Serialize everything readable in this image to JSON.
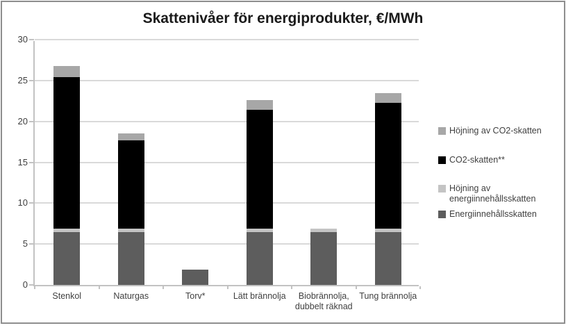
{
  "chart_data": {
    "type": "bar",
    "stacked": true,
    "title": "Skattenivåer för energiprodukter, €/MWh",
    "categories": [
      "Stenkol",
      "Naturgas",
      "Torv*",
      "Lätt brännolja",
      "Biobrännolja, dubbelt räknad",
      "Tung brännolja"
    ],
    "series": [
      {
        "name": "Energiinnehållsskatten",
        "color": "#5d5d5d",
        "values": [
          6.5,
          6.5,
          1.9,
          6.5,
          6.5,
          6.5
        ]
      },
      {
        "name": "Höjning av energiinnehållsskatten",
        "color": "#c4c4c4",
        "values": [
          0.4,
          0.4,
          0,
          0.4,
          0.4,
          0.4
        ]
      },
      {
        "name": "CO2-skatten**",
        "color": "#000000",
        "values": [
          18.5,
          10.8,
          0,
          14.5,
          0,
          15.4
        ]
      },
      {
        "name": "Höjning av CO2-skatten",
        "color": "#a7a7a7",
        "values": [
          1.4,
          0.8,
          0,
          1.2,
          0,
          1.2
        ]
      }
    ],
    "totals": [
      26.8,
      18.5,
      1.9,
      22.6,
      6.9,
      23.5
    ],
    "legend": [
      {
        "label": "Höjning av CO2-skatten",
        "color": "#a7a7a7"
      },
      {
        "label": "CO2-skatten**",
        "color": "#000000"
      },
      {
        "label": "Höjning av energiinnehållsskatten",
        "color": "#c4c4c4"
      },
      {
        "label": "Energiinnehållsskatten",
        "color": "#5d5d5d"
      }
    ],
    "xlabel": "",
    "ylabel": "",
    "ylim": [
      0,
      30
    ],
    "yticks": [
      0,
      5,
      10,
      15,
      20,
      25,
      30
    ],
    "grid": true,
    "legend_position": "right"
  },
  "colors": {
    "frame_border": "#8e8e8e",
    "axis_line": "#c2c2c2",
    "gridline": "#d9d9d9",
    "title_text": "#1a1a1a",
    "label_text": "#3f3f3f",
    "background": "#ffffff"
  }
}
